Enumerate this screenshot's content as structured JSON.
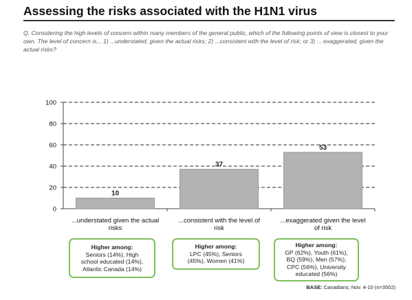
{
  "title": "Assessing the risks associated with the H1N1 virus",
  "question": "Q.  Considering the high levels of concern within many members of the general public, which of the following points of view is closest to your own.  The level of concern is... 1) ...understated, given the actual risks;  2) ...consistent with the level of risk; or 3) ... exaggerated, given the actual risks?",
  "chart_data": {
    "type": "bar",
    "categories": [
      "...understated given the actual risks",
      "...consistent with the level of risk",
      "...exaggerated given the level of risk"
    ],
    "category_lines": [
      [
        "...understated given the actual",
        "risks"
      ],
      [
        "...consistent with the level of",
        "risk"
      ],
      [
        "...exaggerated given the level",
        "of risk"
      ]
    ],
    "values": [
      10,
      37,
      53
    ],
    "ylim": [
      0,
      100
    ],
    "yticks": [
      0,
      20,
      40,
      60,
      80,
      100
    ],
    "grid": "dashed",
    "bar_color": "#b3b3b3"
  },
  "boxes": [
    {
      "title": "Higher among:",
      "lines": [
        "Seniors (14%), High",
        "school educated (14%),",
        "Atlantic Canada (14%)"
      ]
    },
    {
      "title": "Higher among:",
      "lines": [
        "LPC (45%), Seniors",
        "(45%), Women (41%)"
      ]
    },
    {
      "title": "Higher among:",
      "lines": [
        "GP (62%), Youth (61%),",
        "BQ (59%), Men (57%),",
        "CPC (56%), University",
        "educated (56%)"
      ]
    }
  ],
  "base_label": "BASE:",
  "base_text": "Canadians; Nov. 4-10 (n=3502)"
}
